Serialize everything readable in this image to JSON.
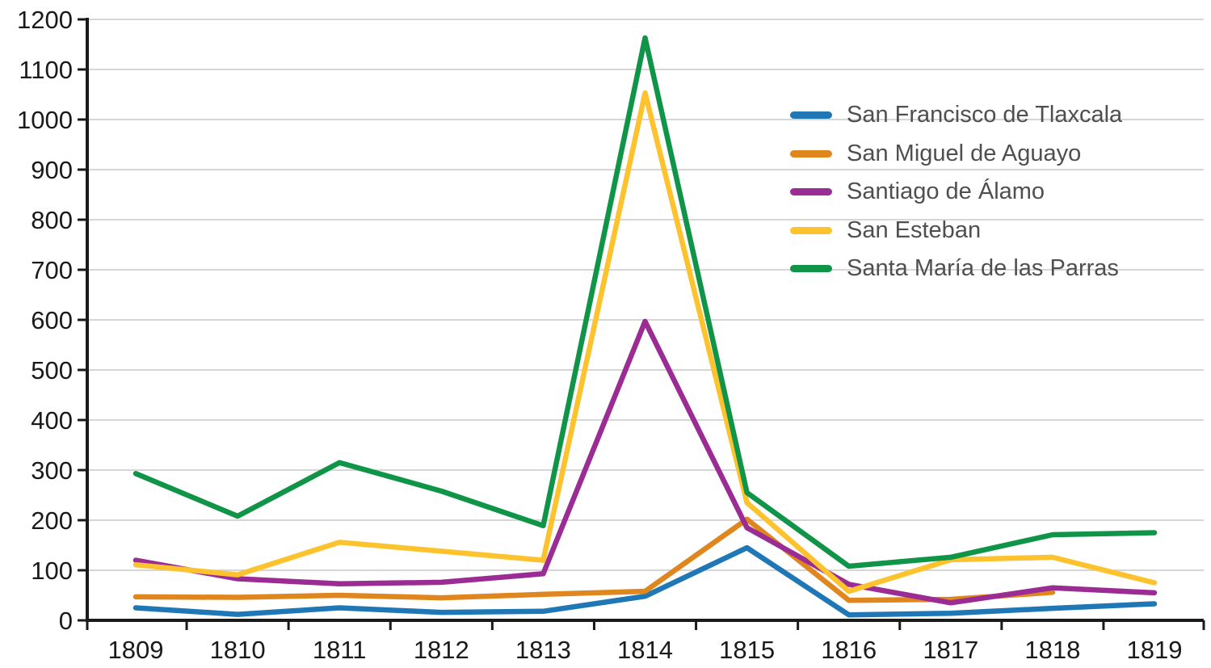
{
  "chart_data": {
    "type": "line",
    "title": "",
    "xlabel": "",
    "ylabel": "",
    "x": [
      1809,
      1810,
      1811,
      1812,
      1813,
      1814,
      1815,
      1816,
      1817,
      1818,
      1819
    ],
    "series": [
      {
        "name": "San Francisco de Tlaxcala",
        "color": "#1f78b5",
        "values": [
          25,
          12,
          25,
          16,
          18,
          48,
          145,
          11,
          14,
          24,
          33
        ]
      },
      {
        "name": "San Miguel de Aguayo",
        "color": "#e0861e",
        "values": [
          47,
          46,
          50,
          45,
          52,
          58,
          202,
          40,
          42,
          56,
          null
        ]
      },
      {
        "name": "Santiago de Álamo",
        "color": "#9a2c94",
        "values": [
          120,
          83,
          73,
          76,
          93,
          597,
          185,
          72,
          35,
          65,
          55
        ]
      },
      {
        "name": "San Esteban",
        "color": "#fdc32f",
        "values": [
          111,
          91,
          156,
          138,
          120,
          1053,
          235,
          58,
          121,
          126,
          75
        ]
      },
      {
        "name": "Santa María de las Parras",
        "color": "#0f9448",
        "values": [
          293,
          208,
          315,
          258,
          189,
          1163,
          255,
          108,
          126,
          171,
          175
        ]
      }
    ],
    "ylim": [
      0,
      1200
    ],
    "ytick_step": 100,
    "ytick_labels": [
      "0",
      "100",
      "200",
      "300",
      "400",
      "500",
      "600",
      "700",
      "800",
      "900",
      "1000",
      "1100",
      "1200"
    ],
    "xtick_labels": [
      "1809",
      "1810",
      "1811",
      "1812",
      "1813",
      "1814",
      "1815",
      "1816",
      "1817",
      "1818",
      "1819"
    ],
    "grid": "horizontal-only",
    "legend_position": "upper-right",
    "colors": {
      "axis": "#1a1a1a",
      "grid": "#c9c9c9",
      "tick_label": "#1a1a1a",
      "legend_text": "#4f4f4f",
      "background": "#ffffff"
    }
  }
}
